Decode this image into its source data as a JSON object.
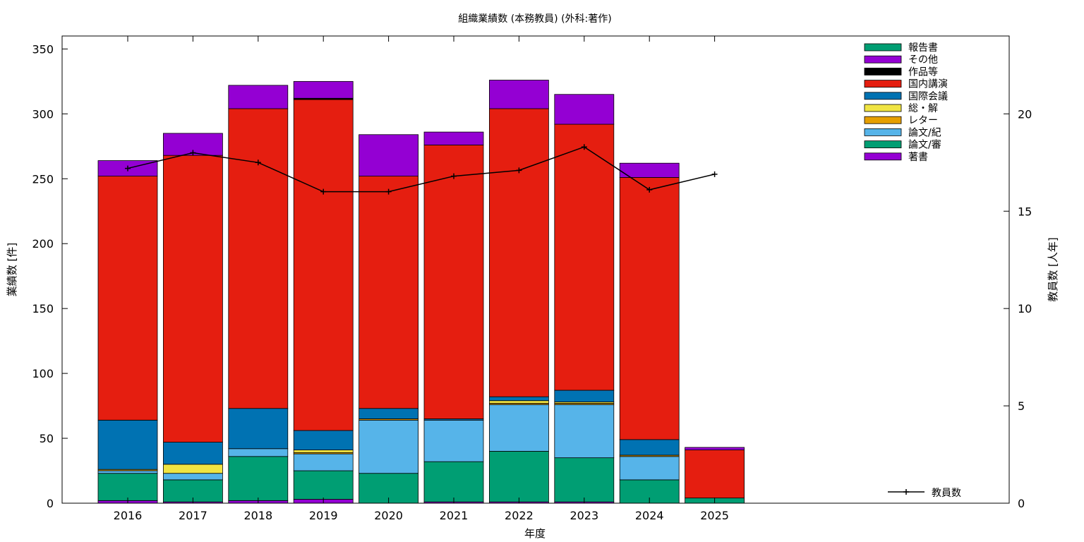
{
  "chart_data": {
    "type": "bar",
    "title": "組織業績数 (本務教員) (外科:著作)",
    "xlabel": "年度",
    "ylabel": "業績数 [件]",
    "y2label": "教員数 [人年]",
    "ylim": [
      0,
      360
    ],
    "y2lim": [
      0,
      24
    ],
    "yticks": [
      0,
      50,
      100,
      150,
      200,
      250,
      300,
      350
    ],
    "y2ticks": [
      0,
      5,
      10,
      15,
      20
    ],
    "grid": false,
    "stacked": true,
    "legend_position": "top-right",
    "categories": [
      "2016",
      "2017",
      "2018",
      "2019",
      "2020",
      "2021",
      "2022",
      "2023",
      "2024",
      "2025"
    ],
    "series": [
      {
        "name": "著書",
        "color": "#9400d3",
        "values": [
          2,
          1,
          2,
          3,
          0,
          1,
          1,
          1,
          0,
          0
        ]
      },
      {
        "name": "論文/審",
        "color": "#009e73",
        "values": [
          21,
          17,
          34,
          22,
          23,
          31,
          39,
          34,
          18,
          4
        ]
      },
      {
        "name": "論文/紀",
        "color": "#56b4e9",
        "values": [
          2,
          5,
          6,
          13,
          41,
          32,
          36,
          41,
          18,
          0
        ]
      },
      {
        "name": "レター",
        "color": "#e69f00",
        "values": [
          1,
          0,
          0,
          1,
          1,
          0,
          1,
          1,
          1,
          0
        ]
      },
      {
        "name": "総・解",
        "color": "#f0e442",
        "values": [
          0,
          7,
          0,
          2,
          0,
          0,
          2,
          1,
          0,
          0
        ]
      },
      {
        "name": "国際会議",
        "color": "#0072b2",
        "values": [
          38,
          17,
          31,
          15,
          8,
          1,
          3,
          9,
          12,
          0
        ]
      },
      {
        "name": "国内講演",
        "color": "#e51e10",
        "values": [
          188,
          221,
          231,
          255,
          179,
          211,
          222,
          205,
          202,
          37
        ]
      },
      {
        "name": "作品等",
        "color": "#000000",
        "values": [
          0,
          0,
          0,
          1,
          0,
          0,
          0,
          0,
          0,
          0
        ]
      },
      {
        "name": "その他",
        "color": "#9400d3",
        "values": [
          12,
          17,
          18,
          13,
          32,
          10,
          22,
          23,
          11,
          2
        ]
      },
      {
        "name": "報告書",
        "color": "#009e73",
        "values": [
          0,
          0,
          0,
          0,
          0,
          0,
          0,
          0,
          0,
          0
        ]
      }
    ],
    "line_series": {
      "name": "教員数",
      "axis": "y2",
      "color": "#000000",
      "values": [
        17.2,
        18.0,
        17.5,
        16.0,
        16.0,
        16.8,
        17.1,
        18.3,
        16.1,
        16.9
      ]
    }
  }
}
